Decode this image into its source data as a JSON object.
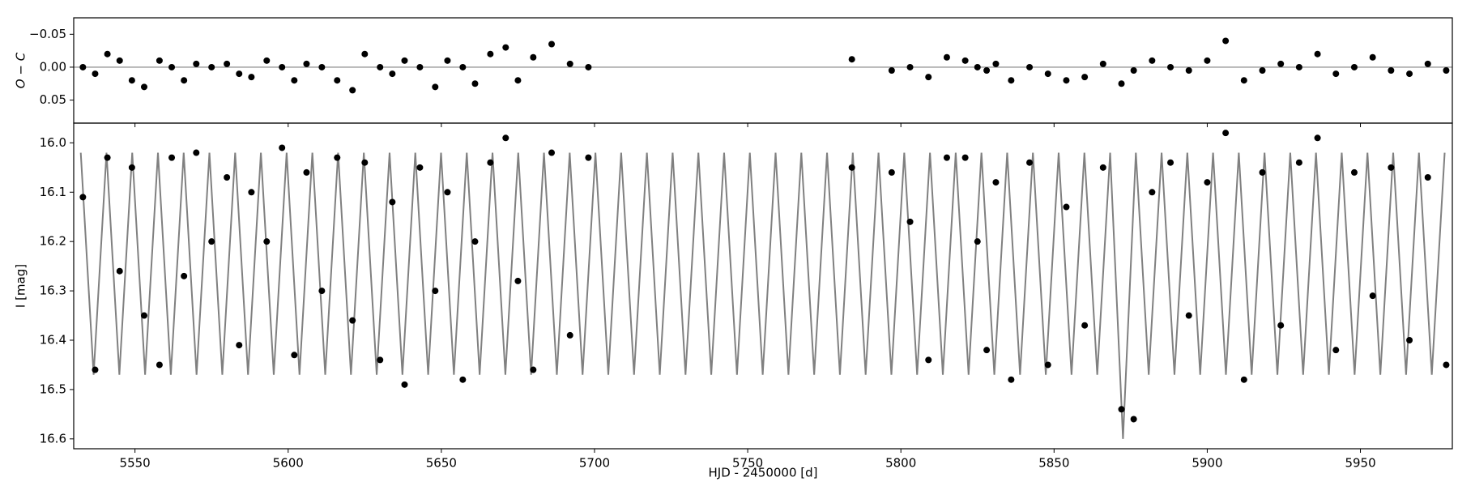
{
  "chart_data": [
    {
      "type": "scatter",
      "ylabel": "O − C",
      "x": [
        5533,
        5537,
        5541,
        5545,
        5549,
        5553,
        5558,
        5562,
        5566,
        5570,
        5575,
        5580,
        5584,
        5588,
        5593,
        5598,
        5602,
        5606,
        5611,
        5616,
        5621,
        5625,
        5630,
        5634,
        5638,
        5643,
        5648,
        5652,
        5657,
        5661,
        5666,
        5671,
        5675,
        5680,
        5686,
        5692,
        5698,
        5784,
        5797,
        5803,
        5809,
        5815,
        5821,
        5825,
        5828,
        5831,
        5836,
        5842,
        5848,
        5854,
        5860,
        5866,
        5872,
        5876,
        5882,
        5888,
        5894,
        5900,
        5906,
        5912,
        5918,
        5924,
        5930,
        5936,
        5942,
        5948,
        5954,
        5960,
        5966,
        5972,
        5978
      ],
      "values": [
        0.0,
        0.01,
        -0.02,
        -0.01,
        0.02,
        0.03,
        -0.01,
        0.0,
        0.02,
        -0.005,
        0.0,
        -0.005,
        0.01,
        0.015,
        -0.01,
        0.0,
        0.02,
        -0.005,
        0.0,
        0.02,
        0.035,
        -0.02,
        0.0,
        0.01,
        -0.01,
        0.0,
        0.03,
        -0.01,
        0.0,
        0.025,
        -0.02,
        -0.03,
        0.02,
        -0.015,
        -0.035,
        -0.005,
        0.0,
        -0.012,
        0.005,
        0.0,
        0.015,
        -0.015,
        -0.01,
        0.0,
        0.005,
        -0.005,
        0.02,
        0.0,
        0.01,
        0.02,
        0.015,
        -0.005,
        0.025,
        0.005,
        -0.01,
        0.0,
        0.005,
        -0.01,
        -0.04,
        0.02,
        0.005,
        -0.005,
        0.0,
        -0.02,
        0.01,
        0.0,
        -0.015,
        0.005,
        0.01,
        -0.005,
        0.005
      ],
      "color": "#000000",
      "ylim": [
        -0.075,
        0.085
      ],
      "y_inverted": true,
      "yticks": [
        {
          "value": -0.05,
          "label": "−0.05"
        },
        {
          "value": 0,
          "label": "0.00"
        },
        {
          "value": 0.05,
          "label": "0.05"
        }
      ]
    },
    {
      "type": "line",
      "xlabel": "HJD - 2450000 [d]",
      "ylabel": "I [mag]",
      "xlim": [
        5530,
        5980
      ],
      "xticks": [
        5550,
        5600,
        5650,
        5700,
        5750,
        5800,
        5850,
        5900,
        5950
      ],
      "ylim": [
        15.96,
        16.62
      ],
      "y_inverted": true,
      "yticks": [
        {
          "value": 16,
          "label": "16.0"
        },
        16.1,
        16.2,
        16.3,
        16.4,
        16.5,
        16.6
      ],
      "series": [
        {
          "style": "line",
          "color": "#808080",
          "x": [
            5532.3,
            5536.5,
            5540.7,
            5544.9,
            5549.1,
            5553.3,
            5557.5,
            5561.7,
            5565.9,
            5570.1,
            5574.3,
            5578.5,
            5582.7,
            5586.9,
            5591.1,
            5595.3,
            5599.5,
            5603.7,
            5607.9,
            5612.1,
            5616.3,
            5620.5,
            5624.7,
            5628.9,
            5633.1,
            5637.3,
            5641.5,
            5645.7,
            5649.9,
            5654.1,
            5658.3,
            5662.5,
            5666.7,
            5670.9,
            5675.1,
            5679.3,
            5683.5,
            5687.7,
            5691.9,
            5696.1,
            5700.3,
            5704.5,
            5708.7,
            5712.9,
            5717.1,
            5721.3,
            5725.5,
            5729.7,
            5733.9,
            5738.1,
            5742.3,
            5746.5,
            5750.7,
            5754.9,
            5759.1,
            5763.3,
            5767.5,
            5771.7,
            5775.9,
            5780.1,
            5784.3,
            5788.5,
            5792.7,
            5796.9,
            5801.1,
            5805.3,
            5809.5,
            5813.7,
            5817.9,
            5822.1,
            5826.3,
            5830.5,
            5834.7,
            5838.9,
            5843.1,
            5847.3,
            5851.5,
            5855.7,
            5859.9,
            5864.1,
            5868.3,
            5872.5,
            5876.7,
            5880.9,
            5885.1,
            5889.3,
            5893.5,
            5897.7,
            5901.9,
            5906.1,
            5910.3,
            5914.5,
            5918.7,
            5922.9,
            5927.1,
            5931.3,
            5935.5,
            5939.7,
            5943.9,
            5948.1,
            5952.3,
            5956.5,
            5960.7,
            5964.9,
            5969.1,
            5973.3,
            5977.5
          ],
          "values": [
            16.02,
            16.47,
            16.02,
            16.47,
            16.02,
            16.47,
            16.02,
            16.47,
            16.02,
            16.47,
            16.02,
            16.47,
            16.02,
            16.47,
            16.02,
            16.47,
            16.02,
            16.47,
            16.02,
            16.47,
            16.02,
            16.47,
            16.02,
            16.47,
            16.02,
            16.47,
            16.02,
            16.47,
            16.02,
            16.47,
            16.02,
            16.47,
            16.02,
            16.47,
            16.02,
            16.47,
            16.02,
            16.47,
            16.02,
            16.47,
            16.02,
            16.47,
            16.02,
            16.47,
            16.02,
            16.47,
            16.02,
            16.47,
            16.02,
            16.47,
            16.02,
            16.47,
            16.02,
            16.47,
            16.02,
            16.47,
            16.02,
            16.47,
            16.02,
            16.47,
            16.02,
            16.47,
            16.02,
            16.47,
            16.02,
            16.47,
            16.02,
            16.47,
            16.02,
            16.47,
            16.02,
            16.47,
            16.02,
            16.47,
            16.02,
            16.47,
            16.02,
            16.47,
            16.02,
            16.47,
            16.02,
            16.6,
            16.02,
            16.47,
            16.02,
            16.47,
            16.02,
            16.47,
            16.02,
            16.47,
            16.02,
            16.47,
            16.02,
            16.47,
            16.02,
            16.47,
            16.02,
            16.47,
            16.02,
            16.47,
            16.02,
            16.47,
            16.02,
            16.47,
            16.02,
            16.47,
            16.02
          ]
        },
        {
          "style": "markers",
          "color": "#000000",
          "x": [
            5533,
            5537,
            5541,
            5545,
            5549,
            5553,
            5558,
            5562,
            5566,
            5570,
            5575,
            5580,
            5584,
            5588,
            5593,
            5598,
            5602,
            5606,
            5611,
            5616,
            5621,
            5625,
            5630,
            5634,
            5638,
            5643,
            5648,
            5652,
            5657,
            5661,
            5666,
            5671,
            5675,
            5680,
            5686,
            5692,
            5698,
            5784,
            5797,
            5803,
            5809,
            5815,
            5821,
            5825,
            5828,
            5831,
            5836,
            5842,
            5848,
            5854,
            5860,
            5866,
            5872,
            5876,
            5882,
            5888,
            5894,
            5900,
            5906,
            5912,
            5918,
            5924,
            5930,
            5936,
            5942,
            5948,
            5954,
            5960,
            5966,
            5972,
            5978
          ],
          "values": [
            16.11,
            16.46,
            16.03,
            16.26,
            16.05,
            16.35,
            16.45,
            16.03,
            16.27,
            16.02,
            16.2,
            16.07,
            16.41,
            16.1,
            16.2,
            16.01,
            16.43,
            16.06,
            16.3,
            16.03,
            16.36,
            16.04,
            16.44,
            16.12,
            16.49,
            16.05,
            16.3,
            16.1,
            16.48,
            16.2,
            16.04,
            15.99,
            16.28,
            16.46,
            16.02,
            16.39,
            16.03,
            16.05,
            16.06,
            16.16,
            16.44,
            16.03,
            16.03,
            16.2,
            16.42,
            16.08,
            16.48,
            16.04,
            16.45,
            16.13,
            16.37,
            16.05,
            16.54,
            16.56,
            16.1,
            16.04,
            16.35,
            16.08,
            15.98,
            16.48,
            16.06,
            16.37,
            16.04,
            15.99,
            16.42,
            16.06,
            16.31,
            16.05,
            16.4,
            16.07,
            16.45
          ]
        }
      ]
    }
  ]
}
